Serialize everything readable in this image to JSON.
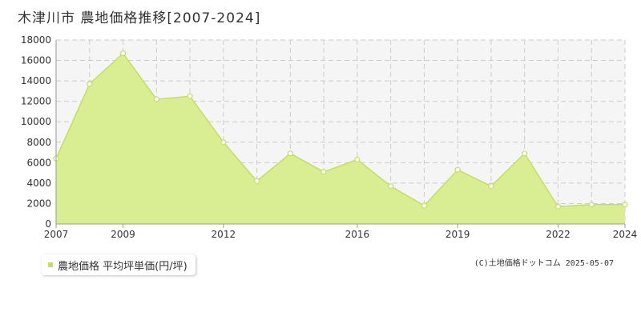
{
  "colors": {
    "fill": "#d9ee92",
    "line": "#c4e05a",
    "marker_fill": "#ffffff",
    "plot_bg": "#f5f5f5",
    "grid": "#cccccc"
  },
  "legend": {
    "label": "農地価格 平均坪単価(円/坪)"
  },
  "credit": "(C)土地価格ドットコム 2025-05-07",
  "chart_data": {
    "type": "area",
    "title": "木津川市 農地価格推移[2007-2024]",
    "xlabel": "",
    "ylabel": "",
    "x": [
      2007,
      2008,
      2009,
      2010,
      2011,
      2012,
      2013,
      2014,
      2015,
      2016,
      2017,
      2018,
      2019,
      2020,
      2021,
      2022,
      2023,
      2024
    ],
    "x_tick_labels": [
      "2007",
      "2009",
      "2012",
      "2016",
      "2019",
      "2022",
      "2024"
    ],
    "xlim": [
      2007,
      2024
    ],
    "ylim": [
      0,
      18000
    ],
    "y_ticks": [
      0,
      2000,
      4000,
      6000,
      8000,
      10000,
      12000,
      14000,
      16000,
      18000
    ],
    "grid": true,
    "legend_position": "bottom-left",
    "series": [
      {
        "name": "農地価格 平均坪単価(円/坪)",
        "values": [
          6400,
          13700,
          16700,
          12200,
          12500,
          8000,
          4200,
          6900,
          5100,
          6300,
          3700,
          1800,
          5300,
          3700,
          6900,
          1700,
          1900,
          1900
        ]
      }
    ]
  }
}
